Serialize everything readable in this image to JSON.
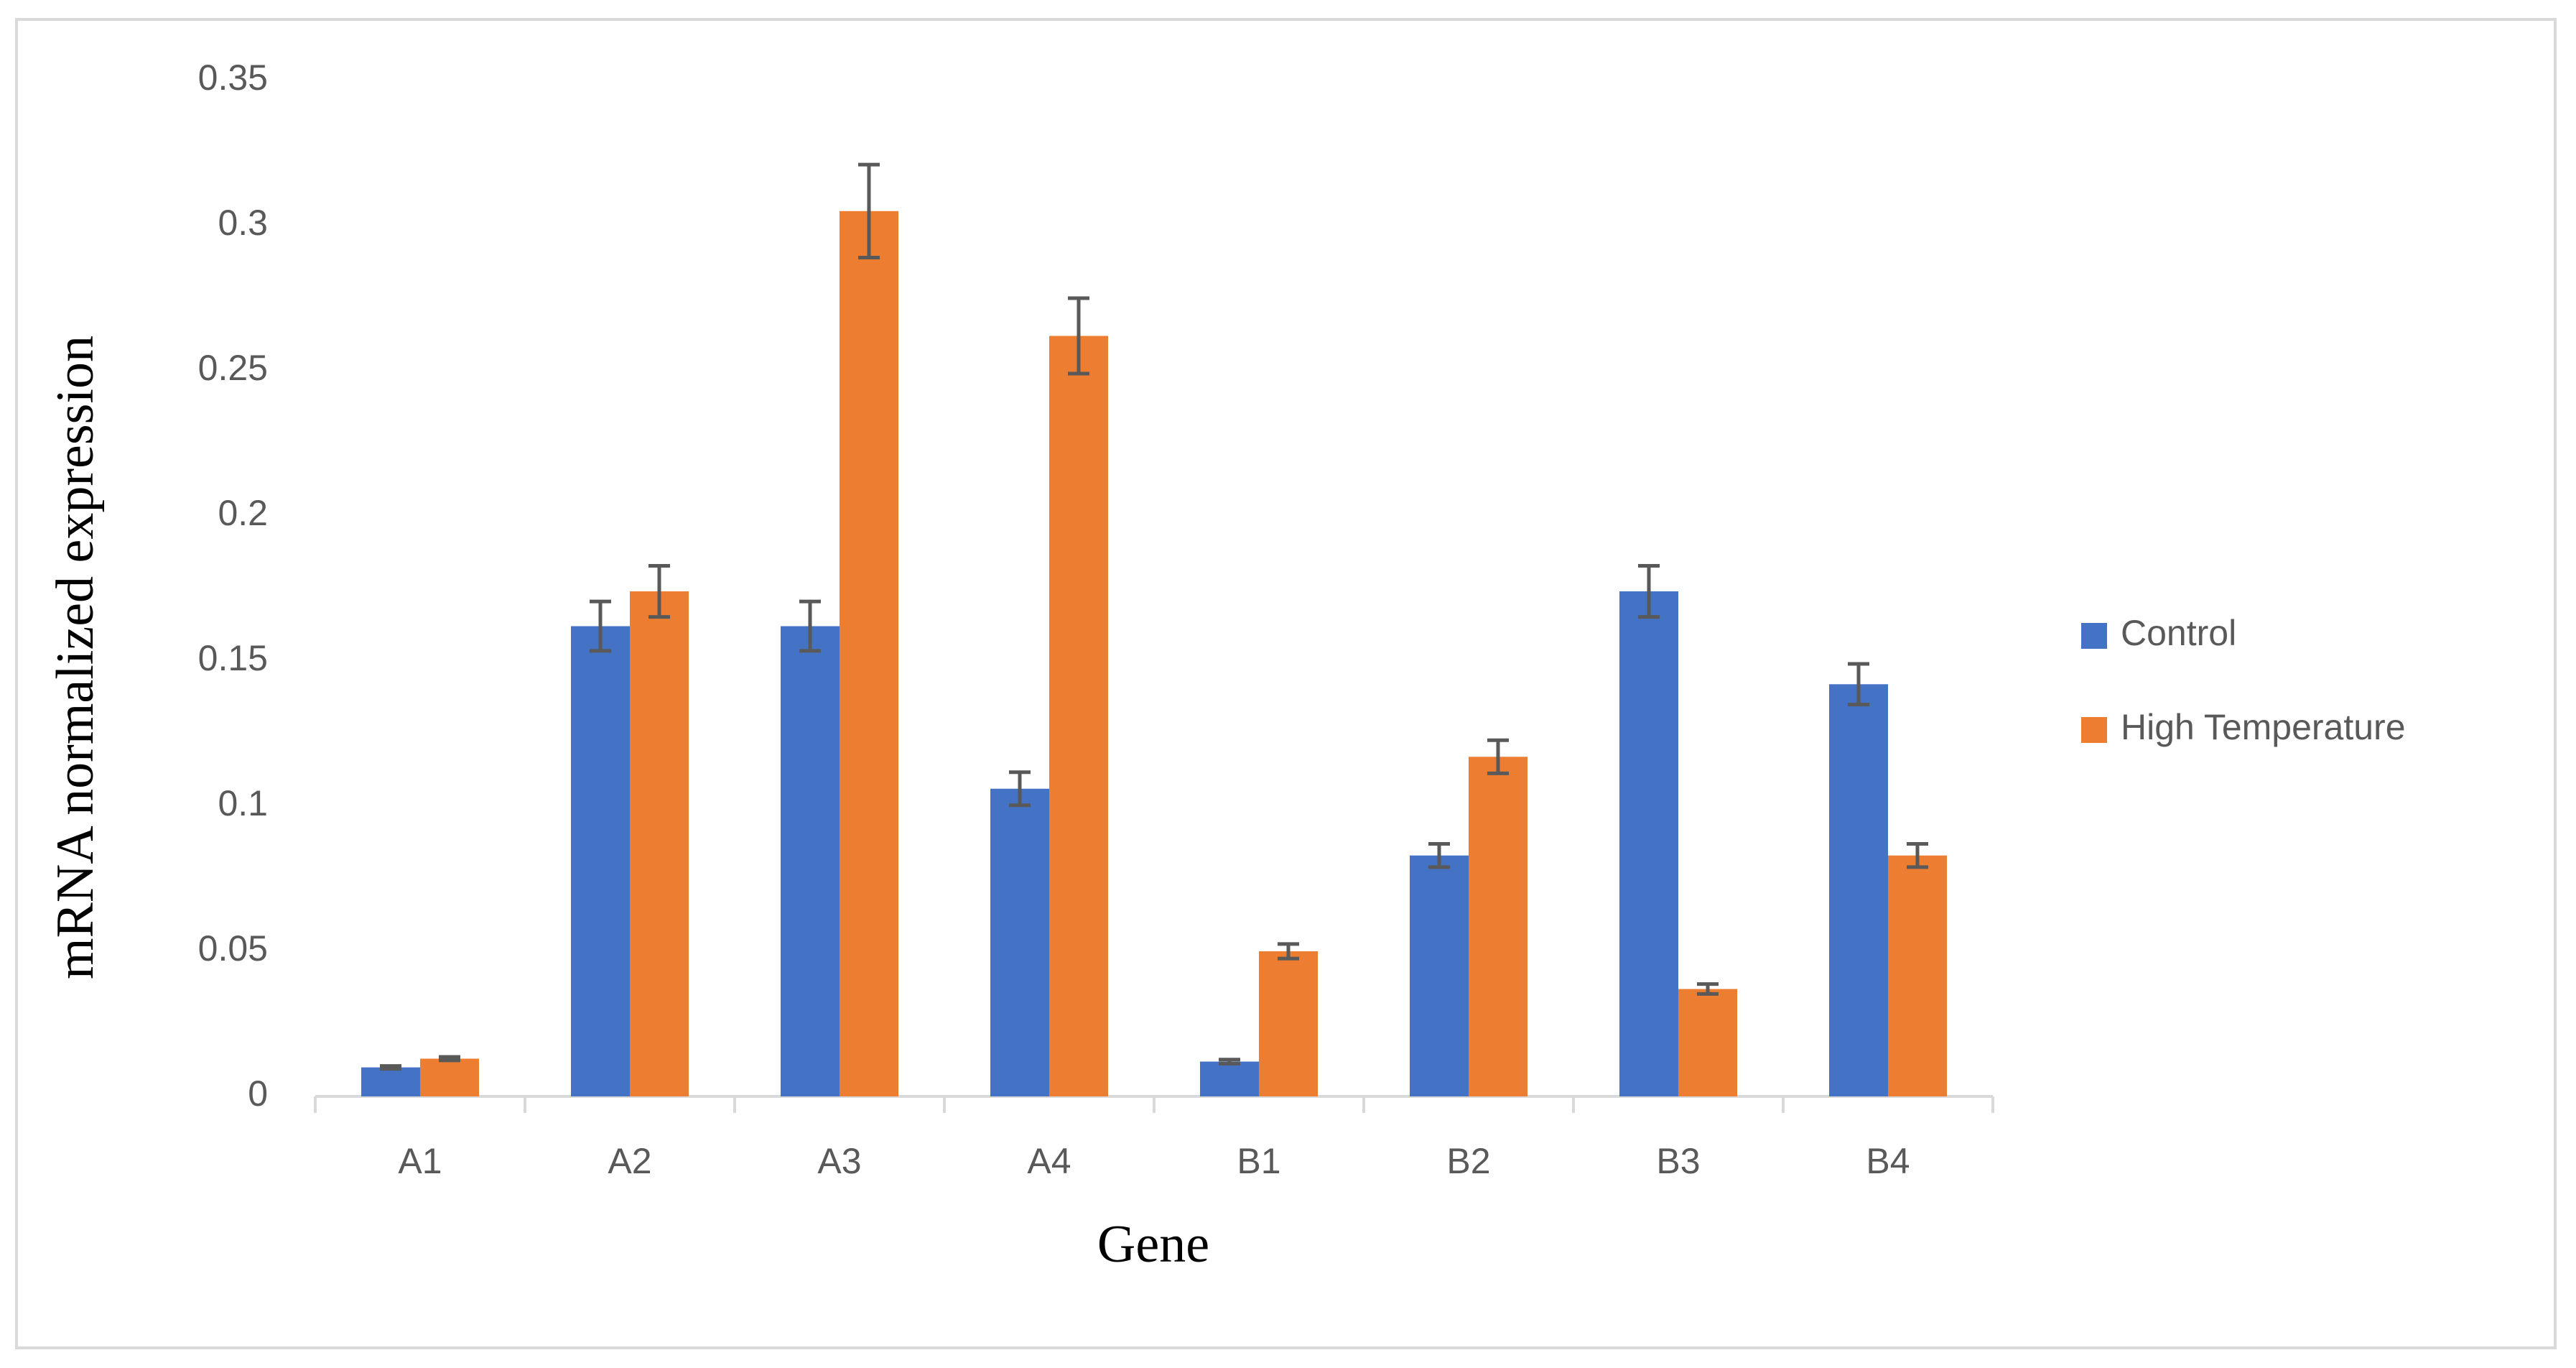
{
  "chart_data": {
    "type": "bar",
    "x_label": "Gene",
    "y_label": "mRNA normalized expression",
    "categories": [
      "A1",
      "A2",
      "A3",
      "A4",
      "B1",
      "B2",
      "B3",
      "B4"
    ],
    "series": [
      {
        "name": "Control",
        "color": "#4472c4",
        "values": [
          0.01,
          0.162,
          0.162,
          0.106,
          0.012,
          0.083,
          0.174,
          0.142
        ],
        "errors": [
          0.0005,
          0.0085,
          0.0085,
          0.0057,
          0.0007,
          0.004,
          0.0088,
          0.007
        ]
      },
      {
        "name": "High Temperature",
        "color": "#ed7d31",
        "values": [
          0.013,
          0.174,
          0.305,
          0.262,
          0.05,
          0.117,
          0.037,
          0.083
        ],
        "errors": [
          0.0006,
          0.0088,
          0.016,
          0.013,
          0.0025,
          0.0057,
          0.0017,
          0.004
        ]
      }
    ],
    "ylim": [
      0,
      0.35
    ],
    "yticks": [
      0,
      0.05,
      0.1,
      0.15,
      0.2,
      0.25,
      0.3,
      0.35
    ],
    "error_color": "#595959",
    "legend": "right"
  }
}
